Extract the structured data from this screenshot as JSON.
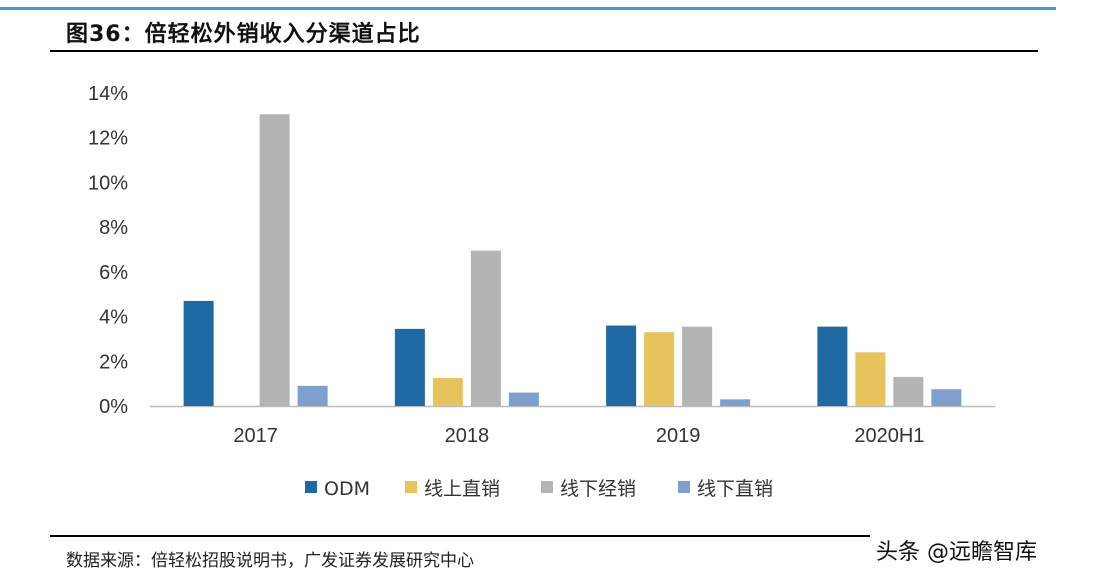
{
  "title": "图36：倍轻松外销收入分渠道占比",
  "source": "数据来源：倍轻松招股说明书，广发证券发展研究中心",
  "watermark": "头条 @远瞻智库",
  "chart_data": {
    "type": "bar",
    "title": "",
    "xlabel": "",
    "ylabel": "",
    "categories": [
      "2017",
      "2018",
      "2019",
      "2020H1"
    ],
    "ylim": [
      0,
      14
    ],
    "yticks": [
      "0%",
      "2%",
      "4%",
      "6%",
      "8%",
      "10%",
      "12%",
      "14%"
    ],
    "grid": false,
    "legend_position": "bottom",
    "series": [
      {
        "name": "ODM",
        "color": "#1f6aa5",
        "values": [
          4.7,
          3.45,
          3.6,
          3.55
        ]
      },
      {
        "name": "线上直销",
        "color": "#e6c35c",
        "values": [
          0,
          1.25,
          3.3,
          2.4
        ]
      },
      {
        "name": "线下经销",
        "color": "#b4b4b4",
        "values": [
          13.05,
          6.95,
          3.55,
          1.3
        ]
      },
      {
        "name": "线下直销",
        "color": "#7f9fcf",
        "values": [
          0.9,
          0.6,
          0.3,
          0.75
        ]
      }
    ]
  }
}
